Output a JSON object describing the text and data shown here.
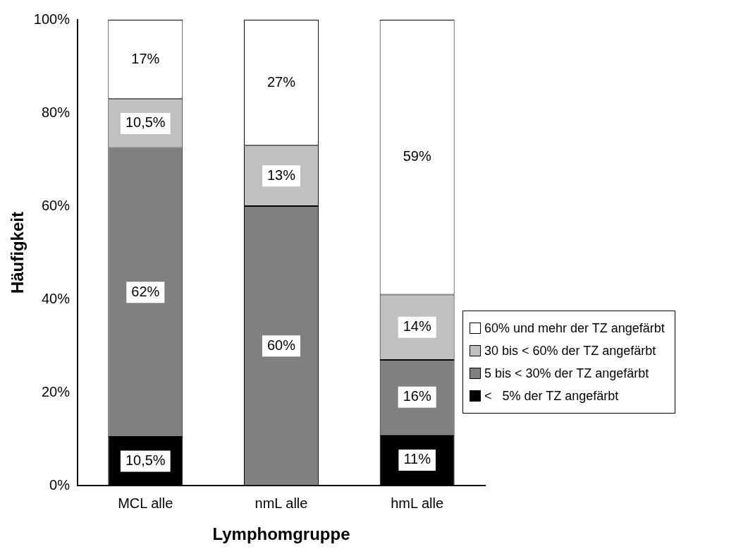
{
  "chart_data": {
    "type": "bar",
    "stacked": true,
    "xlabel": "Lymphomgruppe",
    "ylabel": "Häufigkeit",
    "categories": [
      "MCL alle",
      "nmL alle",
      "hmL alle"
    ],
    "ylim": [
      0,
      100
    ],
    "yticks": [
      {
        "value": 0,
        "label": "0%"
      },
      {
        "value": 20,
        "label": "20%"
      },
      {
        "value": 40,
        "label": "40%"
      },
      {
        "value": 60,
        "label": "60%"
      },
      {
        "value": 80,
        "label": "80%"
      },
      {
        "value": 100,
        "label": "100%"
      }
    ],
    "grid": false,
    "legend": "right",
    "series": [
      {
        "name": "<   5% der TZ angefärbt",
        "color": "#000000",
        "values": [
          10.5,
          0,
          11
        ],
        "value_labels": [
          "10,5%",
          null,
          "11%"
        ]
      },
      {
        "name": "5 bis < 30% der TZ angefärbt",
        "color": "#808080",
        "values": [
          62,
          60,
          16
        ],
        "value_labels": [
          "62%",
          "60%",
          "16%"
        ]
      },
      {
        "name": "30 bis < 60% der TZ angefärbt",
        "color": "#c0c0c0",
        "values": [
          10.5,
          13,
          14
        ],
        "value_labels": [
          "10,5%",
          "13%",
          "14%"
        ]
      },
      {
        "name": "60% und mehr der TZ angefärbt",
        "color": "#ffffff",
        "values": [
          17,
          27,
          59
        ],
        "value_labels": [
          "17%",
          "27%",
          "59%"
        ]
      }
    ]
  }
}
